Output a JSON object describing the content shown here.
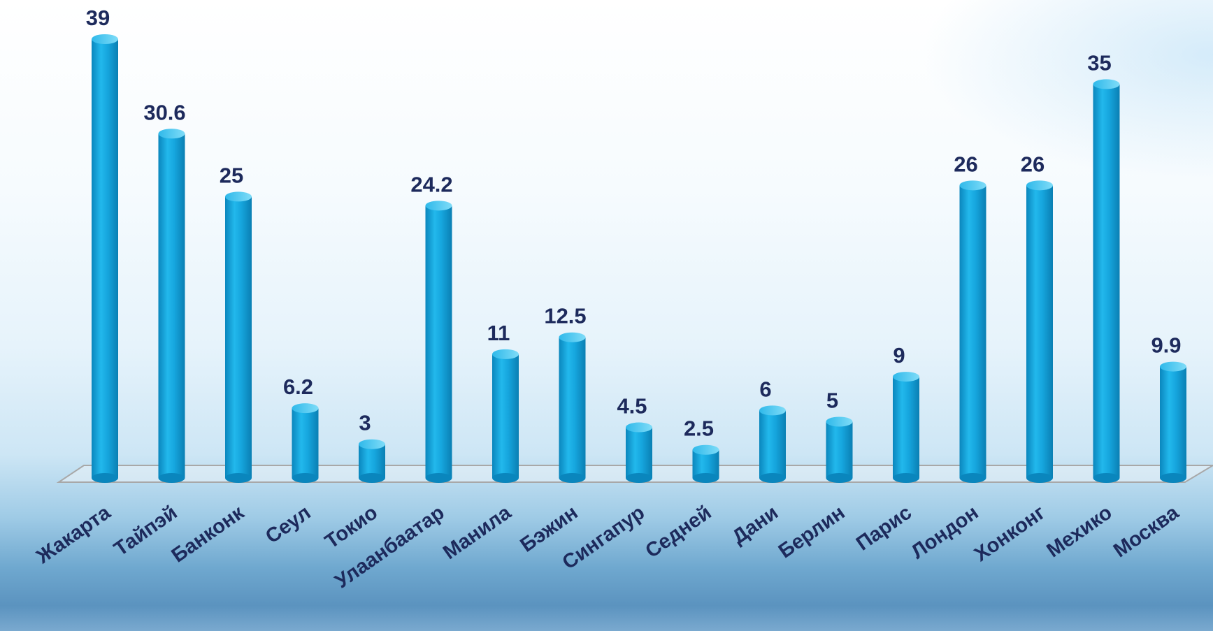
{
  "chart_data": {
    "type": "bar",
    "categories": [
      "Жакарта",
      "Тайпэй",
      "Банконк",
      "Сеул",
      "Токио",
      "Улаанбаатар",
      "Манила",
      "Бэжин",
      "Сингапур",
      "Седней",
      "Дани",
      "Берлин",
      "Парис",
      "Лондон",
      "Хонконг",
      "Мехико",
      "Москва"
    ],
    "values": [
      39,
      30.6,
      25,
      6.2,
      3,
      24.2,
      11,
      12.5,
      4.5,
      2.5,
      6,
      5,
      9,
      26,
      26,
      35,
      9.9
    ],
    "value_labels": [
      "39",
      "30.6",
      "25",
      "6.2",
      "3",
      "24.2",
      "11",
      "12.5",
      "4.5",
      "2.5",
      "6",
      "5",
      "9",
      "26",
      "26",
      "35",
      "9.9"
    ],
    "title": "",
    "xlabel": "",
    "ylabel": "",
    "ylim": [
      0,
      39
    ],
    "grid": false,
    "legend": "none",
    "colors": {
      "bar": "#12a9e2",
      "bar_dark": "#0a7fb3",
      "bar_light": "#6fd4f5",
      "label": "#1d2a5c",
      "floor_line": "#a8a8a8"
    }
  }
}
